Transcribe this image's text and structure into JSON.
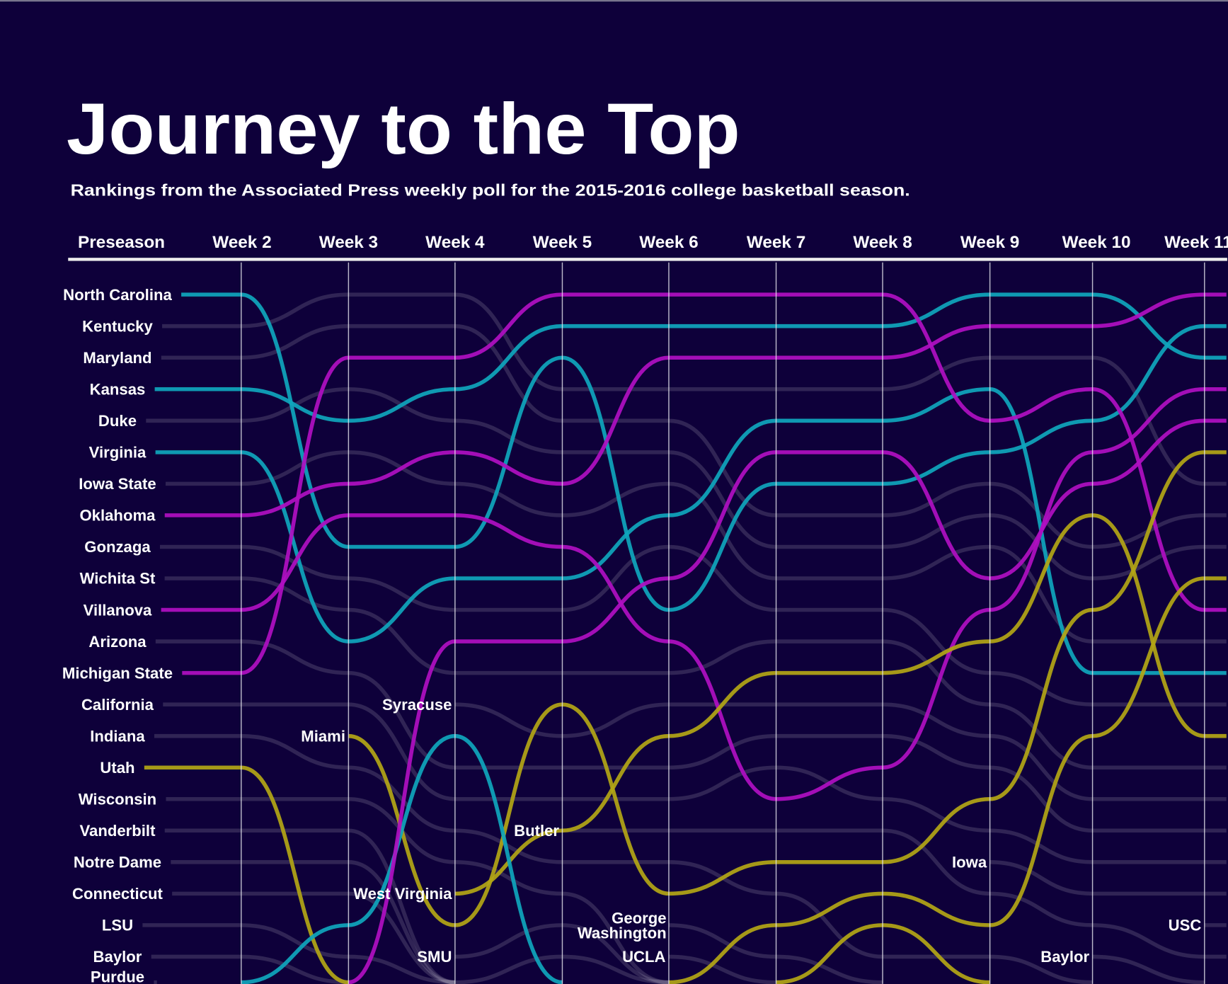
{
  "chart_data": {
    "type": "line",
    "title": "Journey to the Top",
    "subtitle": "Rankings from the Associated Press weekly poll for the 2015-2016 college basketball season.",
    "columns": [
      "Preseason",
      "Week 2",
      "Week 3",
      "Week 4",
      "Week 5",
      "Week 6",
      "Week 7",
      "Week 8",
      "Week 9",
      "Week 10",
      "Week 11"
    ],
    "y_axis": "rank (1 = top)",
    "ylim": [
      1,
      25
    ],
    "grid": "vertical lines at each week",
    "colors": {
      "background": "#0e003a",
      "cyan": "#0fa6bd",
      "magenta": "#b00fc2",
      "yellow": "#b3a616",
      "other": "#ffffff"
    },
    "teams": [
      {
        "name": "North Carolina",
        "color": "cyan",
        "ranks": [
          1,
          1,
          9,
          9,
          3,
          11,
          7,
          7,
          6,
          5,
          2
        ]
      },
      {
        "name": "Kentucky",
        "color": "other",
        "ranks": [
          2,
          null,
          null,
          null,
          null,
          null,
          null,
          null,
          null,
          null,
          null
        ]
      },
      {
        "name": "Maryland",
        "color": "other",
        "ranks": [
          3,
          null,
          null,
          null,
          null,
          null,
          null,
          null,
          null,
          null,
          null
        ]
      },
      {
        "name": "Kansas",
        "color": "cyan",
        "ranks": [
          4,
          4,
          5,
          4,
          2,
          2,
          2,
          2,
          1,
          1,
          3
        ]
      },
      {
        "name": "Duke",
        "color": "other",
        "ranks": [
          5,
          null,
          null,
          null,
          null,
          null,
          null,
          null,
          null,
          null,
          null
        ]
      },
      {
        "name": "Virginia",
        "color": "cyan",
        "ranks": [
          6,
          6,
          12,
          10,
          10,
          8,
          5,
          5,
          4,
          13,
          13
        ]
      },
      {
        "name": "Iowa State",
        "color": "other",
        "ranks": [
          7,
          null,
          null,
          null,
          null,
          null,
          null,
          null,
          null,
          null,
          null
        ]
      },
      {
        "name": "Oklahoma",
        "color": "magenta",
        "ranks": [
          8,
          8,
          7,
          6,
          7,
          3,
          3,
          3,
          2,
          2,
          1
        ]
      },
      {
        "name": "Gonzaga",
        "color": "other",
        "ranks": [
          9,
          null,
          null,
          null,
          null,
          null,
          null,
          null,
          null,
          null,
          null
        ]
      },
      {
        "name": "Wichita St",
        "color": "other",
        "ranks": [
          10,
          null,
          null,
          null,
          null,
          null,
          null,
          null,
          null,
          null,
          null
        ]
      },
      {
        "name": "Villanova",
        "color": "magenta",
        "ranks": [
          11,
          11,
          8,
          8,
          9,
          12,
          17,
          16,
          11,
          6,
          4
        ]
      },
      {
        "name": "Arizona",
        "color": "other",
        "ranks": [
          12,
          null,
          null,
          null,
          null,
          null,
          null,
          null,
          null,
          null,
          null
        ]
      },
      {
        "name": "Michigan State",
        "color": "magenta",
        "ranks": [
          13,
          13,
          3,
          3,
          1,
          1,
          1,
          1,
          5,
          4,
          11
        ]
      },
      {
        "name": "California",
        "color": "other",
        "ranks": [
          14,
          null,
          null,
          null,
          null,
          null,
          null,
          null,
          null,
          null,
          null
        ]
      },
      {
        "name": "Indiana",
        "color": "other",
        "ranks": [
          15,
          null,
          null,
          null,
          null,
          null,
          null,
          null,
          null,
          null,
          null
        ]
      },
      {
        "name": "Utah",
        "color": "yellow",
        "ranks": [
          16,
          16,
          25,
          0,
          0,
          0,
          0,
          0,
          0,
          0,
          0
        ]
      },
      {
        "name": "Wisconsin",
        "color": "other",
        "ranks": [
          17,
          null,
          null,
          null,
          null,
          null,
          null,
          null,
          null,
          null,
          null
        ]
      },
      {
        "name": "Vanderbilt",
        "color": "other",
        "ranks": [
          18,
          null,
          null,
          null,
          null,
          null,
          null,
          null,
          null,
          null,
          null
        ]
      },
      {
        "name": "Notre Dame",
        "color": "other",
        "ranks": [
          19,
          null,
          null,
          null,
          null,
          null,
          null,
          null,
          null,
          null,
          null
        ]
      },
      {
        "name": "Connecticut",
        "color": "other",
        "ranks": [
          20,
          null,
          null,
          null,
          null,
          null,
          null,
          null,
          null,
          null,
          null
        ]
      },
      {
        "name": "LSU",
        "color": "other",
        "ranks": [
          21,
          null,
          null,
          null,
          null,
          null,
          null,
          null,
          null,
          null,
          null
        ]
      },
      {
        "name": "Baylor",
        "color": "other",
        "ranks": [
          22,
          null,
          null,
          null,
          null,
          null,
          null,
          null,
          null,
          null,
          null
        ]
      },
      {
        "name": "Purdue",
        "color": "other",
        "ranks": [
          23,
          null,
          null,
          null,
          null,
          null,
          null,
          null,
          null,
          null,
          null
        ]
      },
      {
        "name": "Miami",
        "color": "yellow",
        "ranks": [
          null,
          null,
          15,
          21,
          14,
          20,
          19,
          19,
          17,
          11,
          6
        ]
      },
      {
        "name": "Syracuse",
        "color": "other",
        "ranks": [
          null,
          null,
          null,
          14,
          null,
          null,
          null,
          null,
          null,
          null,
          null
        ]
      },
      {
        "name": "West Virginia",
        "color": "yellow",
        "ranks": [
          null,
          null,
          null,
          20,
          18,
          15,
          13,
          13,
          12,
          8,
          15
        ]
      },
      {
        "name": "SMU",
        "color": "other",
        "ranks": [
          null,
          null,
          null,
          22,
          null,
          null,
          null,
          null,
          null,
          null,
          null
        ]
      },
      {
        "name": "Butler",
        "color": "other",
        "ranks": [
          null,
          null,
          null,
          null,
          18,
          null,
          null,
          null,
          null,
          null,
          null
        ]
      },
      {
        "name": "George Washington",
        "color": "other",
        "ranks": [
          null,
          null,
          null,
          null,
          null,
          21,
          null,
          null,
          null,
          null,
          null
        ]
      },
      {
        "name": "UCLA",
        "color": "other",
        "ranks": [
          null,
          null,
          null,
          null,
          null,
          22,
          null,
          null,
          null,
          null,
          null
        ]
      },
      {
        "name": "Iowa",
        "color": "other",
        "ranks": [
          null,
          null,
          null,
          null,
          null,
          null,
          null,
          null,
          19,
          null,
          null
        ]
      },
      {
        "name": "Baylor",
        "color": "other",
        "ranks": [
          null,
          null,
          null,
          null,
          null,
          null,
          null,
          null,
          null,
          22,
          null
        ]
      },
      {
        "name": "USC",
        "color": "other",
        "ranks": [
          null,
          null,
          null,
          null,
          null,
          null,
          null,
          null,
          null,
          null,
          21
        ]
      },
      {
        "name": "",
        "color": "cyan",
        "ranks": [
          null,
          24,
          21,
          15,
          0,
          0,
          0,
          0,
          0,
          0,
          0
        ]
      },
      {
        "name": "",
        "color": "magenta",
        "ranks": [
          null,
          null,
          24,
          12,
          12,
          10,
          6,
          6,
          10,
          7,
          5
        ]
      },
      {
        "name": "",
        "color": "yellow",
        "ranks": [
          null,
          null,
          null,
          null,
          null,
          24,
          21,
          20,
          21,
          15,
          10
        ]
      },
      {
        "name": "",
        "color": "yellow",
        "ranks": [
          null,
          null,
          null,
          null,
          null,
          null,
          24,
          21,
          24,
          0,
          0
        ]
      }
    ]
  }
}
